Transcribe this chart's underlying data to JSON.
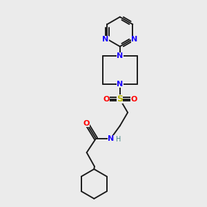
{
  "background_color": "#ebebeb",
  "bond_color": "#1a1a1a",
  "bond_width": 1.4,
  "figsize": [
    3.0,
    3.0
  ],
  "dpi": 100,
  "atoms": {
    "N_blue": "#1a00ff",
    "O_red": "#ff0000",
    "S_yellow": "#b8b800",
    "NH_teal": "#4a8a8a",
    "C_black": "#1a1a1a"
  },
  "xlim": [
    0,
    10
  ],
  "ylim": [
    0,
    10
  ]
}
